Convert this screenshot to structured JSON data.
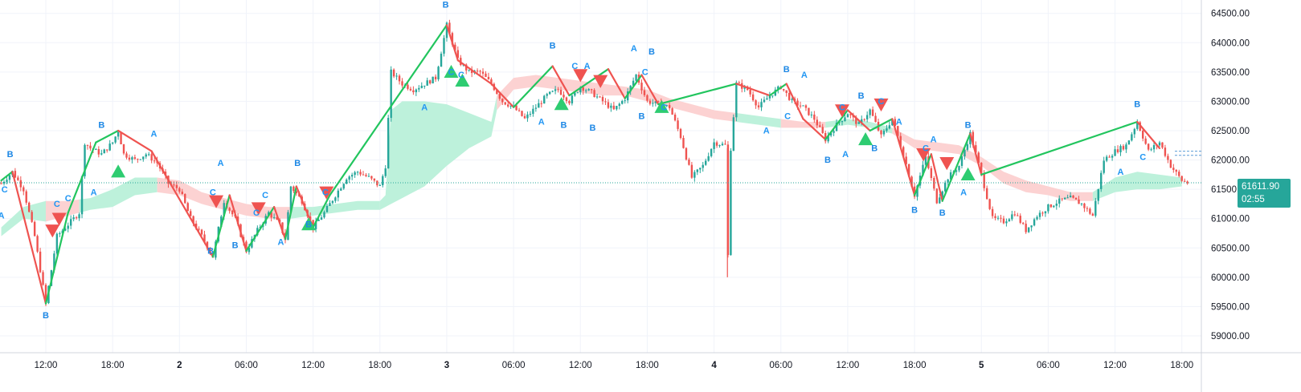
{
  "chart_data": {
    "type": "candlestick",
    "title": "",
    "y_axis": {
      "side": "right",
      "range": [
        58600,
        64800
      ],
      "ticks": [
        "64500.00",
        "64000.00",
        "63500.00",
        "63000.00",
        "62500.00",
        "62000.00",
        "61500.00",
        "61000.00",
        "60500.00",
        "60000.00",
        "59500.00",
        "59000.00"
      ]
    },
    "x_axis": {
      "ticks": [
        {
          "label": "12:00",
          "day": false,
          "h": 10
        },
        {
          "label": "18:00",
          "day": false,
          "h": 16
        },
        {
          "label": "2",
          "day": true,
          "h": 22
        },
        {
          "label": "06:00",
          "day": false,
          "h": 28
        },
        {
          "label": "12:00",
          "day": false,
          "h": 34
        },
        {
          "label": "18:00",
          "day": false,
          "h": 40
        },
        {
          "label": "3",
          "day": true,
          "h": 46
        },
        {
          "label": "06:00",
          "day": false,
          "h": 52
        },
        {
          "label": "12:00",
          "day": false,
          "h": 58
        },
        {
          "label": "18:00",
          "day": false,
          "h": 64
        },
        {
          "label": "4",
          "day": true,
          "h": 70
        },
        {
          "label": "06:00",
          "day": false,
          "h": 76
        },
        {
          "label": "12:00",
          "day": false,
          "h": 82
        },
        {
          "label": "18:00",
          "day": false,
          "h": 88
        },
        {
          "label": "5",
          "day": true,
          "h": 94
        },
        {
          "label": "06:00",
          "day": false,
          "h": 100
        },
        {
          "label": "12:00",
          "day": false,
          "h": 106
        },
        {
          "label": "18:00",
          "day": false,
          "h": 112
        }
      ],
      "h_range": [
        6,
        114
      ]
    },
    "grid": true,
    "last_price": {
      "value": 61611.9,
      "label": "61611.90",
      "countdown": "02:55"
    },
    "colors": {
      "up": "#26a69a",
      "down": "#ef5350",
      "band_bull": "#b9f0d9",
      "band_bear": "#fcd0d0",
      "zig": "#ef5350",
      "zig_up": "#22c55e",
      "label": "#2962ff"
    },
    "price_path": [
      [
        6,
        61600
      ],
      [
        7,
        61800
      ],
      [
        8,
        61500
      ],
      [
        9,
        60700
      ],
      [
        10,
        59550
      ],
      [
        11,
        60700
      ],
      [
        12,
        60900
      ],
      [
        13,
        61100
      ],
      [
        13.5,
        62300
      ],
      [
        14,
        62200
      ],
      [
        15,
        62100
      ],
      [
        16,
        62300
      ],
      [
        16.5,
        62500
      ],
      [
        17,
        62100
      ],
      [
        18,
        62000
      ],
      [
        19,
        62100
      ],
      [
        20,
        61950
      ],
      [
        21,
        61600
      ],
      [
        22,
        61500
      ],
      [
        23,
        61000
      ],
      [
        24,
        60700
      ],
      [
        25,
        60350
      ],
      [
        26,
        61300
      ],
      [
        27,
        61000
      ],
      [
        28,
        60450
      ],
      [
        29,
        60800
      ],
      [
        30,
        61100
      ],
      [
        31,
        60900
      ],
      [
        31.5,
        60650
      ],
      [
        32,
        61550
      ],
      [
        33,
        61300
      ],
      [
        34,
        60850
      ],
      [
        35,
        61100
      ],
      [
        36,
        61400
      ],
      [
        37,
        61700
      ],
      [
        38,
        61800
      ],
      [
        39,
        61700
      ],
      [
        40,
        61550
      ],
      [
        40.5,
        61900
      ],
      [
        41,
        63500
      ],
      [
        42,
        63300
      ],
      [
        43,
        63200
      ],
      [
        44,
        63300
      ],
      [
        45,
        63400
      ],
      [
        46,
        64300
      ],
      [
        47,
        63700
      ],
      [
        48,
        63500
      ],
      [
        49,
        63500
      ],
      [
        50,
        63300
      ],
      [
        51,
        63000
      ],
      [
        52,
        62900
      ],
      [
        53,
        62700
      ],
      [
        54,
        62900
      ],
      [
        55,
        63100
      ],
      [
        56,
        63200
      ],
      [
        57,
        63000
      ],
      [
        58,
        63250
      ],
      [
        59,
        63150
      ],
      [
        60,
        63000
      ],
      [
        61,
        62850
      ],
      [
        62,
        63050
      ],
      [
        63,
        63450
      ],
      [
        64,
        63000
      ],
      [
        65,
        62950
      ],
      [
        66,
        62900
      ],
      [
        67,
        62400
      ],
      [
        68,
        61700
      ],
      [
        69,
        61900
      ],
      [
        70,
        62300
      ],
      [
        71,
        62250
      ],
      [
        71.2,
        60000
      ],
      [
        71.5,
        62200
      ],
      [
        72,
        63300
      ],
      [
        73,
        63200
      ],
      [
        74,
        62900
      ],
      [
        75,
        63100
      ],
      [
        76,
        63250
      ],
      [
        77,
        63000
      ],
      [
        78,
        62900
      ],
      [
        79,
        62700
      ],
      [
        80,
        62350
      ],
      [
        81,
        62600
      ],
      [
        82,
        62800
      ],
      [
        83,
        62600
      ],
      [
        84,
        62850
      ],
      [
        85,
        62400
      ],
      [
        86,
        62700
      ],
      [
        87,
        62100
      ],
      [
        88,
        61400
      ],
      [
        89,
        62050
      ],
      [
        90,
        61300
      ],
      [
        91,
        61700
      ],
      [
        92,
        61900
      ],
      [
        93,
        62450
      ],
      [
        94,
        61750
      ],
      [
        95,
        61000
      ],
      [
        96,
        60950
      ],
      [
        97,
        61100
      ],
      [
        98,
        60800
      ],
      [
        99,
        61050
      ],
      [
        100,
        61200
      ],
      [
        101,
        61300
      ],
      [
        102,
        61350
      ],
      [
        103,
        61250
      ],
      [
        104,
        61050
      ],
      [
        105,
        62000
      ],
      [
        106,
        62150
      ],
      [
        107,
        62250
      ],
      [
        108,
        62650
      ],
      [
        109,
        62150
      ],
      [
        110,
        62300
      ],
      [
        111,
        61900
      ],
      [
        112,
        61650
      ],
      [
        112.5,
        61612
      ]
    ],
    "cloud": [
      [
        6,
        60850,
        60700
      ],
      [
        8,
        61200,
        61000
      ],
      [
        10,
        61300,
        60950
      ],
      [
        12,
        61300,
        61050
      ],
      [
        14,
        61350,
        61150
      ],
      [
        16,
        61500,
        61200
      ],
      [
        18,
        61700,
        61400
      ],
      [
        20,
        61700,
        61450
      ],
      [
        22,
        61650,
        61400
      ],
      [
        24,
        61450,
        61250
      ],
      [
        26,
        61350,
        61150
      ],
      [
        28,
        61250,
        61050
      ],
      [
        30,
        61200,
        61000
      ],
      [
        32,
        61200,
        61000
      ],
      [
        34,
        61200,
        61050
      ],
      [
        36,
        61250,
        61100
      ],
      [
        38,
        61300,
        61150
      ],
      [
        40,
        61300,
        61150
      ],
      [
        40.5,
        61400,
        61200
      ],
      [
        41,
        62850,
        61250
      ],
      [
        42,
        63000,
        61350
      ],
      [
        44,
        63000,
        61550
      ],
      [
        46,
        62950,
        61900
      ],
      [
        48,
        62800,
        62200
      ],
      [
        50,
        62650,
        62400
      ],
      [
        50.5,
        63100,
        62850
      ],
      [
        52,
        63400,
        63200
      ],
      [
        54,
        63450,
        63250
      ],
      [
        56,
        63400,
        63200
      ],
      [
        58,
        63350,
        63150
      ],
      [
        60,
        63300,
        63100
      ],
      [
        62,
        63250,
        63100
      ],
      [
        64,
        63200,
        63000
      ],
      [
        66,
        63050,
        62900
      ],
      [
        68,
        62950,
        62800
      ],
      [
        70,
        62850,
        62700
      ],
      [
        72,
        62800,
        62650
      ],
      [
        74,
        62750,
        62600
      ],
      [
        76,
        62700,
        62550
      ],
      [
        78,
        62650,
        62550
      ],
      [
        80,
        62650,
        62550
      ],
      [
        82,
        62700,
        62600
      ],
      [
        84,
        62650,
        62550
      ],
      [
        86,
        62550,
        62450
      ],
      [
        88,
        62350,
        62200
      ],
      [
        90,
        62300,
        62150
      ],
      [
        92,
        62250,
        62100
      ],
      [
        94,
        62050,
        61900
      ],
      [
        96,
        61800,
        61600
      ],
      [
        98,
        61650,
        61450
      ],
      [
        100,
        61550,
        61400
      ],
      [
        102,
        61450,
        61300
      ],
      [
        104,
        61450,
        61300
      ],
      [
        106,
        61700,
        61450
      ],
      [
        108,
        61800,
        61500
      ],
      [
        110,
        61750,
        61500
      ],
      [
        112,
        61700,
        61550
      ]
    ],
    "cloud_states": [
      [
        6,
        10,
        "bull"
      ],
      [
        10,
        13,
        "bear"
      ],
      [
        13,
        20,
        "bull"
      ],
      [
        20,
        32,
        "bear"
      ],
      [
        32,
        40,
        "bull"
      ],
      [
        40,
        50.5,
        "bull"
      ],
      [
        50.5,
        63.5,
        "bear"
      ],
      [
        63.5,
        72,
        "bear"
      ],
      [
        72,
        76,
        "bull"
      ],
      [
        76,
        80,
        "bear"
      ],
      [
        80,
        86,
        "bull"
      ],
      [
        86,
        104,
        "bear"
      ],
      [
        104,
        112,
        "bull"
      ]
    ],
    "zigzag": [
      [
        6,
        61650
      ],
      [
        7,
        61800
      ],
      [
        10,
        59550
      ],
      [
        12,
        61100
      ],
      [
        14.5,
        62300
      ],
      [
        16.5,
        62500
      ],
      [
        19.5,
        62150
      ],
      [
        25,
        60350
      ],
      [
        26.5,
        61400
      ],
      [
        28,
        60450
      ],
      [
        30.5,
        61200
      ],
      [
        31.5,
        60650
      ],
      [
        32.5,
        61550
      ],
      [
        34,
        60850
      ],
      [
        35.5,
        61400
      ],
      [
        46,
        64300
      ],
      [
        47,
        63700
      ],
      [
        50,
        63300
      ],
      [
        52,
        62900
      ],
      [
        55.5,
        63600
      ],
      [
        57,
        63100
      ],
      [
        60.5,
        63550
      ],
      [
        62,
        63050
      ],
      [
        63.5,
        63450
      ],
      [
        65,
        62950
      ],
      [
        72,
        63300
      ],
      [
        75,
        63100
      ],
      [
        76.5,
        63300
      ],
      [
        78,
        62700
      ],
      [
        80,
        62350
      ],
      [
        82,
        62850
      ],
      [
        84,
        62500
      ],
      [
        86,
        62700
      ],
      [
        88,
        61400
      ],
      [
        89.5,
        62100
      ],
      [
        90.5,
        61300
      ],
      [
        93,
        62450
      ],
      [
        94,
        61750
      ],
      [
        108,
        62650
      ],
      [
        110,
        62200
      ]
    ],
    "markers": [
      {
        "h": 6.8,
        "p": 62050,
        "t": "B",
        "c": "label"
      },
      {
        "h": 6.3,
        "p": 61450,
        "t": "C",
        "c": "label"
      },
      {
        "h": 6.0,
        "p": 61000,
        "t": "A",
        "c": "label"
      },
      {
        "h": 10.0,
        "p": 59300,
        "t": "B",
        "c": "label"
      },
      {
        "h": 11.0,
        "p": 61200,
        "t": "C",
        "c": "label"
      },
      {
        "h": 12.0,
        "p": 61300,
        "t": "C",
        "c": "label"
      },
      {
        "h": 15.0,
        "p": 62550,
        "t": "B",
        "c": "label"
      },
      {
        "h": 14.3,
        "p": 61400,
        "t": "A",
        "c": "label"
      },
      {
        "h": 19.7,
        "p": 62400,
        "t": "A",
        "c": "label"
      },
      {
        "h": 25.7,
        "p": 61900,
        "t": "A",
        "c": "label"
      },
      {
        "h": 25.0,
        "p": 61400,
        "t": "C",
        "c": "label"
      },
      {
        "h": 24.8,
        "p": 60400,
        "t": "B",
        "c": "label"
      },
      {
        "h": 27.0,
        "p": 60500,
        "t": "B",
        "c": "label"
      },
      {
        "h": 29.7,
        "p": 61350,
        "t": "C",
        "c": "label"
      },
      {
        "h": 28.9,
        "p": 61050,
        "t": "C",
        "c": "label"
      },
      {
        "h": 32.6,
        "p": 61900,
        "t": "B",
        "c": "label"
      },
      {
        "h": 31.1,
        "p": 60550,
        "t": "A",
        "c": "label"
      },
      {
        "h": 33.6,
        "p": 60850,
        "t": "B",
        "c": "label"
      },
      {
        "h": 35.1,
        "p": 61400,
        "t": "C",
        "c": "label"
      },
      {
        "h": 45.9,
        "p": 64600,
        "t": "B",
        "c": "label"
      },
      {
        "h": 44.0,
        "p": 62850,
        "t": "A",
        "c": "label"
      },
      {
        "h": 46.4,
        "p": 63450,
        "t": "C",
        "c": "label"
      },
      {
        "h": 47.3,
        "p": 63400,
        "t": "C",
        "c": "label"
      },
      {
        "h": 55.5,
        "p": 63900,
        "t": "B",
        "c": "label"
      },
      {
        "h": 54.5,
        "p": 62600,
        "t": "A",
        "c": "label"
      },
      {
        "h": 56.5,
        "p": 62550,
        "t": "B",
        "c": "label"
      },
      {
        "h": 57.5,
        "p": 63550,
        "t": "C",
        "c": "label"
      },
      {
        "h": 58.6,
        "p": 63550,
        "t": "A",
        "c": "label"
      },
      {
        "h": 59.1,
        "p": 62500,
        "t": "B",
        "c": "label"
      },
      {
        "h": 62.8,
        "p": 63850,
        "t": "A",
        "c": "label"
      },
      {
        "h": 64.4,
        "p": 63800,
        "t": "B",
        "c": "label"
      },
      {
        "h": 63.8,
        "p": 63450,
        "t": "C",
        "c": "label"
      },
      {
        "h": 63.5,
        "p": 62700,
        "t": "B",
        "c": "label"
      },
      {
        "h": 65.5,
        "p": 62850,
        "t": "C",
        "c": "label"
      },
      {
        "h": 76.5,
        "p": 63500,
        "t": "B",
        "c": "label"
      },
      {
        "h": 78.1,
        "p": 63400,
        "t": "A",
        "c": "label"
      },
      {
        "h": 76.6,
        "p": 62700,
        "t": "C",
        "c": "label"
      },
      {
        "h": 74.7,
        "p": 62450,
        "t": "A",
        "c": "label"
      },
      {
        "h": 81.5,
        "p": 62850,
        "t": "C",
        "c": "label"
      },
      {
        "h": 83.2,
        "p": 63050,
        "t": "B",
        "c": "label"
      },
      {
        "h": 85.0,
        "p": 62950,
        "t": "C",
        "c": "label"
      },
      {
        "h": 80.2,
        "p": 61950,
        "t": "B",
        "c": "label"
      },
      {
        "h": 81.8,
        "p": 62050,
        "t": "A",
        "c": "label"
      },
      {
        "h": 84.4,
        "p": 62150,
        "t": "B",
        "c": "label"
      },
      {
        "h": 86.6,
        "p": 62600,
        "t": "A",
        "c": "label"
      },
      {
        "h": 88.0,
        "p": 61100,
        "t": "B",
        "c": "label"
      },
      {
        "h": 89.0,
        "p": 62150,
        "t": "C",
        "c": "label"
      },
      {
        "h": 89.7,
        "p": 62300,
        "t": "A",
        "c": "label"
      },
      {
        "h": 90.5,
        "p": 61050,
        "t": "B",
        "c": "label"
      },
      {
        "h": 92.8,
        "p": 62550,
        "t": "B",
        "c": "label"
      },
      {
        "h": 92.4,
        "p": 61400,
        "t": "A",
        "c": "label"
      },
      {
        "h": 108.0,
        "p": 62900,
        "t": "B",
        "c": "label"
      },
      {
        "h": 106.5,
        "p": 61750,
        "t": "A",
        "c": "label"
      },
      {
        "h": 108.5,
        "p": 62000,
        "t": "C",
        "c": "label"
      }
    ],
    "triangles": [
      {
        "h": 11.2,
        "p": 61000,
        "dir": "down"
      },
      {
        "h": 10.6,
        "p": 60800,
        "dir": "down"
      },
      {
        "h": 16.5,
        "p": 61800,
        "dir": "up"
      },
      {
        "h": 25.3,
        "p": 61300,
        "dir": "down"
      },
      {
        "h": 29.1,
        "p": 61180,
        "dir": "down"
      },
      {
        "h": 33.6,
        "p": 60900,
        "dir": "up"
      },
      {
        "h": 35.2,
        "p": 61450,
        "dir": "down"
      },
      {
        "h": 46.4,
        "p": 63500,
        "dir": "up"
      },
      {
        "h": 47.4,
        "p": 63350,
        "dir": "up"
      },
      {
        "h": 56.3,
        "p": 62950,
        "dir": "up"
      },
      {
        "h": 58.0,
        "p": 63450,
        "dir": "down"
      },
      {
        "h": 59.8,
        "p": 63350,
        "dir": "down"
      },
      {
        "h": 65.3,
        "p": 62900,
        "dir": "up"
      },
      {
        "h": 81.5,
        "p": 62850,
        "dir": "down"
      },
      {
        "h": 83.6,
        "p": 62350,
        "dir": "up"
      },
      {
        "h": 85.0,
        "p": 62950,
        "dir": "down"
      },
      {
        "h": 88.8,
        "p": 62100,
        "dir": "down"
      },
      {
        "h": 90.9,
        "p": 61950,
        "dir": "down"
      },
      {
        "h": 92.8,
        "p": 61750,
        "dir": "up"
      }
    ]
  }
}
